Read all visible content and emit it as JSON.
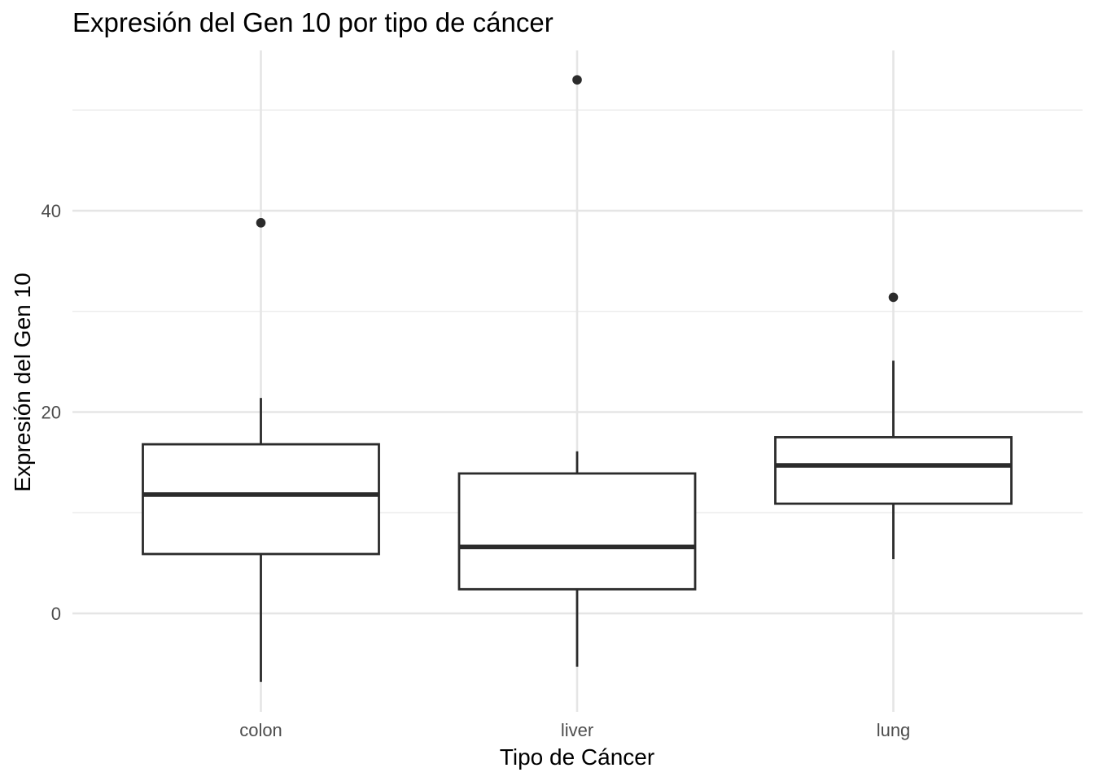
{
  "chart_data": {
    "type": "box",
    "title": "Expresión del Gen 10 por tipo de cáncer",
    "xlabel": "Tipo de Cáncer",
    "ylabel": "Expresión del Gen 10",
    "categories": [
      "colon",
      "liver",
      "lung"
    ],
    "y_ticks": [
      0,
      20,
      40
    ],
    "y_tick_labels": [
      "0",
      "20",
      "40"
    ],
    "ylim": [
      -9.5,
      56
    ],
    "grid": true,
    "boxes": [
      {
        "category": "colon",
        "whisker_low": -6.8,
        "q1": 5.9,
        "median": 11.8,
        "q3": 16.8,
        "whisker_high": 21.4,
        "outliers": [
          38.8
        ]
      },
      {
        "category": "liver",
        "whisker_low": -5.3,
        "q1": 2.4,
        "median": 6.6,
        "q3": 13.9,
        "whisker_high": 16.1,
        "outliers": [
          53.0
        ]
      },
      {
        "category": "lung",
        "whisker_low": 5.4,
        "q1": 10.9,
        "median": 14.7,
        "q3": 17.5,
        "whisker_high": 25.1,
        "outliers": [
          31.4
        ]
      }
    ]
  }
}
